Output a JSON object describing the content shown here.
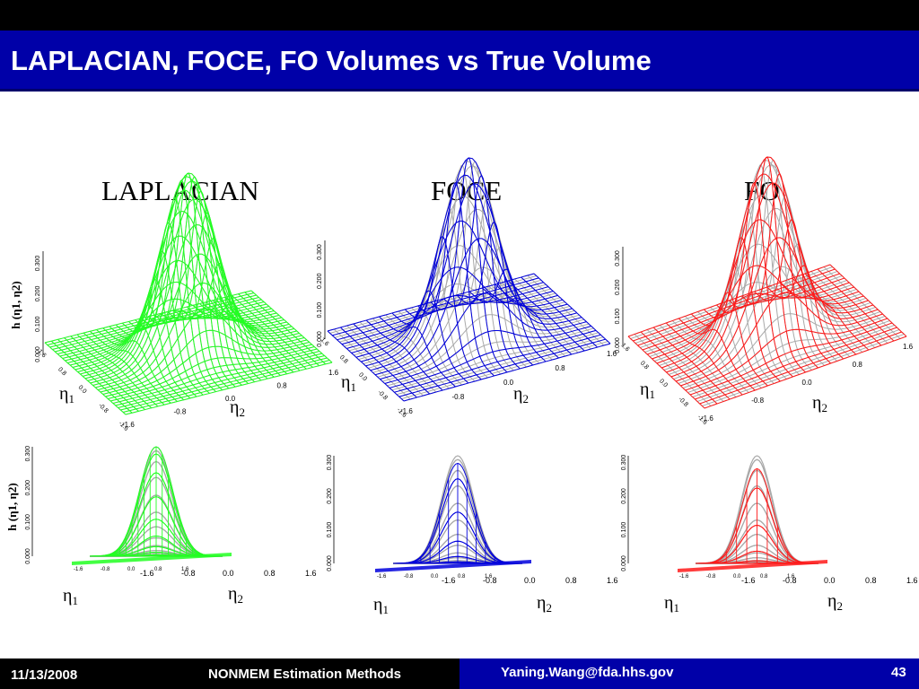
{
  "slide": {
    "title": "LAPLACIAN, FOCE, FO Volumes vs True Volume",
    "columns": [
      "LAPLACIAN",
      "FOCE",
      "FO"
    ]
  },
  "colors": {
    "header_bar": "#0000a8",
    "laplacian": "#22ff22",
    "foce": "#0000dd",
    "fo": "#ff1a1a",
    "true_surface": "#a9a9a9"
  },
  "axes": {
    "z_label": "h (η1, η2)",
    "eta1": "η1",
    "eta2": "η2",
    "z_ticks": [
      "0.000",
      "0.100",
      "0.200",
      "0.300"
    ],
    "eta1_ticks": [
      "1.6",
      "0.8",
      "0.0",
      "-0.8",
      "-1.6"
    ],
    "eta2_ticks": [
      "-1.6",
      "-0.8",
      "0.0",
      "0.8",
      "1.6"
    ],
    "bottom_eta1_ticks": [
      "-1.6",
      "-0.8",
      "0.0",
      "0.8",
      "1.6"
    ]
  },
  "footer": {
    "date": "11/13/2008",
    "center": "NONMEM Estimation Methods",
    "email": "Yaning.Wang@fda.hhs.gov",
    "page": "43"
  }
}
